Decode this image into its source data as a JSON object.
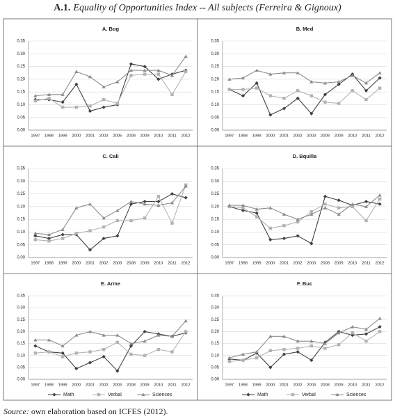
{
  "title_label": "A.1.",
  "title": "Equality of Opportunities Index -- All subjects (Ferreira & Gignoux)",
  "source_label": "Source:",
  "source": "own elaboration based on ICFES (2012).",
  "chart_data": [
    {
      "type": "line",
      "title": "A. Bog",
      "categories": [
        "1997",
        "1998",
        "1999",
        "2000",
        "2001",
        "2003",
        "2005",
        "2008",
        "2009",
        "2010",
        "2011",
        "2012"
      ],
      "ylim": [
        0,
        0.35
      ],
      "yticks": [
        {
          "value": 0,
          "label": "0.00"
        },
        {
          "value": 0.05,
          "label": "0.05"
        },
        {
          "value": 0.1,
          "label": "0.10"
        },
        {
          "value": 0.15,
          "label": "0.15"
        },
        {
          "value": 0.2,
          "label": "0.20"
        },
        {
          "value": 0.25,
          "label": "0.25"
        },
        {
          "value": 0.3,
          "label": "0.30"
        },
        {
          "value": 0.35,
          "label": "0.35"
        }
      ],
      "grid": true,
      "legend": false,
      "series": [
        {
          "name": "Math",
          "color": "#404040",
          "marker": "diamond",
          "values": [
            0.12,
            0.12,
            0.11,
            0.18,
            0.075,
            0.09,
            0.1,
            0.26,
            0.25,
            0.2,
            0.22,
            0.235
          ]
        },
        {
          "name": "Verbal",
          "color": "#b3b3b3",
          "marker": "square",
          "values": [
            0.115,
            0.125,
            0.09,
            0.09,
            0.095,
            0.12,
            0.105,
            0.215,
            0.22,
            0.22,
            0.14,
            0.23
          ]
        },
        {
          "name": "Sciences",
          "color": "#8c8c8c",
          "marker": "triangle",
          "values": [
            0.135,
            0.14,
            0.14,
            0.23,
            0.21,
            0.17,
            0.19,
            0.235,
            0.235,
            0.235,
            0.215,
            0.29
          ]
        }
      ]
    },
    {
      "type": "line",
      "title": "B. Med",
      "categories": [
        "1997",
        "1998",
        "1999",
        "2000",
        "2001",
        "2002",
        "2003",
        "2008",
        "2009",
        "2010",
        "2011",
        "2012"
      ],
      "ylim": [
        0,
        0.35
      ],
      "yticks": [
        {
          "value": 0,
          "label": "0.00"
        },
        {
          "value": 0.05,
          "label": "0.05"
        },
        {
          "value": 0.1,
          "label": "0.10"
        },
        {
          "value": 0.15,
          "label": "0.15"
        },
        {
          "value": 0.2,
          "label": "0.20"
        },
        {
          "value": 0.25,
          "label": "0.25"
        },
        {
          "value": 0.3,
          "label": "0.30"
        },
        {
          "value": 0.35,
          "label": "0.35"
        }
      ],
      "grid": true,
      "legend": false,
      "series": [
        {
          "name": "Math",
          "color": "#404040",
          "marker": "diamond",
          "values": [
            0.16,
            0.135,
            0.185,
            0.06,
            0.085,
            0.125,
            0.065,
            0.14,
            0.18,
            0.22,
            0.155,
            0.205
          ]
        },
        {
          "name": "Verbal",
          "color": "#b3b3b3",
          "marker": "square",
          "values": [
            0.16,
            0.16,
            0.165,
            0.135,
            0.125,
            0.155,
            0.135,
            0.11,
            0.105,
            0.155,
            0.12,
            0.165
          ]
        },
        {
          "name": "Sciences",
          "color": "#8c8c8c",
          "marker": "triangle",
          "values": [
            0.2,
            0.205,
            0.235,
            0.22,
            0.225,
            0.225,
            0.19,
            0.185,
            0.19,
            0.215,
            0.185,
            0.225
          ]
        }
      ]
    },
    {
      "type": "line",
      "title": "C. Cali",
      "categories": [
        "1997",
        "1998",
        "1999",
        "2000",
        "2001",
        "2002",
        "2003",
        "2008",
        "2009",
        "2010",
        "2011",
        "2012"
      ],
      "ylim": [
        0,
        0.35
      ],
      "yticks": [
        {
          "value": 0,
          "label": "0.00"
        },
        {
          "value": 0.05,
          "label": "0.05"
        },
        {
          "value": 0.1,
          "label": "0.10"
        },
        {
          "value": 0.15,
          "label": "0.15"
        },
        {
          "value": 0.2,
          "label": "0.20"
        },
        {
          "value": 0.25,
          "label": "0.25"
        },
        {
          "value": 0.3,
          "label": "0.30"
        },
        {
          "value": 0.35,
          "label": "0.35"
        }
      ],
      "grid": true,
      "legend": false,
      "series": [
        {
          "name": "Math",
          "color": "#404040",
          "marker": "diamond",
          "values": [
            0.085,
            0.075,
            0.09,
            0.09,
            0.03,
            0.075,
            0.085,
            0.21,
            0.22,
            0.22,
            0.25,
            0.235
          ]
        },
        {
          "name": "Verbal",
          "color": "#b3b3b3",
          "marker": "square",
          "values": [
            0.07,
            0.065,
            0.075,
            0.095,
            0.105,
            0.12,
            0.145,
            0.145,
            0.155,
            0.24,
            0.135,
            0.285
          ]
        },
        {
          "name": "Sciences",
          "color": "#8c8c8c",
          "marker": "triangle",
          "values": [
            0.095,
            0.09,
            0.11,
            0.195,
            0.21,
            0.155,
            0.185,
            0.22,
            0.21,
            0.205,
            0.215,
            0.28
          ]
        }
      ]
    },
    {
      "type": "line",
      "title": "D. Bquilla",
      "categories": [
        "1997",
        "1998",
        "1999",
        "2000",
        "2001",
        "2002",
        "2003",
        "2008",
        "2009",
        "2010",
        "2011",
        "2012"
      ],
      "ylim": [
        0,
        0.35
      ],
      "yticks": [
        {
          "value": 0,
          "label": "0.00"
        },
        {
          "value": 0.05,
          "label": "0.05"
        },
        {
          "value": 0.1,
          "label": "0.10"
        },
        {
          "value": 0.15,
          "label": "0.15"
        },
        {
          "value": 0.2,
          "label": "0.20"
        },
        {
          "value": 0.25,
          "label": "0.25"
        },
        {
          "value": 0.3,
          "label": "0.30"
        },
        {
          "value": 0.35,
          "label": "0.35"
        }
      ],
      "grid": true,
      "legend": false,
      "series": [
        {
          "name": "Math",
          "color": "#404040",
          "marker": "diamond",
          "values": [
            0.2,
            0.185,
            0.175,
            0.07,
            0.075,
            0.085,
            0.055,
            0.24,
            0.225,
            0.205,
            0.22,
            0.21
          ]
        },
        {
          "name": "Verbal",
          "color": "#b3b3b3",
          "marker": "square",
          "values": [
            0.2,
            0.195,
            0.16,
            0.115,
            0.125,
            0.14,
            0.18,
            0.21,
            0.195,
            0.2,
            0.145,
            0.23
          ]
        },
        {
          "name": "Sciences",
          "color": "#8c8c8c",
          "marker": "triangle",
          "values": [
            0.205,
            0.205,
            0.19,
            0.195,
            0.17,
            0.15,
            0.17,
            0.195,
            0.17,
            0.21,
            0.2,
            0.245
          ]
        }
      ]
    },
    {
      "type": "line",
      "title": "E. Arme",
      "categories": [
        "1997",
        "1998",
        "1999",
        "2000",
        "2001",
        "2002",
        "2003",
        "2008",
        "2009",
        "2010",
        "2011",
        "2012"
      ],
      "ylim": [
        0,
        0.35
      ],
      "yticks": [
        {
          "value": 0,
          "label": "0.00"
        },
        {
          "value": 0.05,
          "label": "0.05"
        },
        {
          "value": 0.1,
          "label": "0.10"
        },
        {
          "value": 0.15,
          "label": "0.15"
        },
        {
          "value": 0.2,
          "label": "0.20"
        },
        {
          "value": 0.25,
          "label": "0.25"
        },
        {
          "value": 0.3,
          "label": "0.30"
        },
        {
          "value": 0.35,
          "label": "0.35"
        }
      ],
      "grid": true,
      "legend": true,
      "series": [
        {
          "name": "Math",
          "color": "#404040",
          "marker": "diamond",
          "values": [
            0.14,
            0.115,
            0.11,
            0.045,
            0.07,
            0.095,
            0.035,
            0.14,
            0.2,
            0.19,
            0.18,
            0.195
          ]
        },
        {
          "name": "Verbal",
          "color": "#b3b3b3",
          "marker": "square",
          "values": [
            0.11,
            0.115,
            0.095,
            0.11,
            0.115,
            0.125,
            0.155,
            0.105,
            0.1,
            0.125,
            0.115,
            0.2
          ]
        },
        {
          "name": "Sciences",
          "color": "#8c8c8c",
          "marker": "triangle",
          "values": [
            0.165,
            0.165,
            0.14,
            0.185,
            0.2,
            0.185,
            0.185,
            0.15,
            0.16,
            0.185,
            0.18,
            0.245
          ]
        }
      ]
    },
    {
      "type": "line",
      "title": "F. Buc",
      "categories": [
        "1997",
        "1998",
        "1999",
        "2000",
        "2001",
        "2002",
        "2003",
        "2008",
        "2009",
        "2010",
        "2011",
        "2012"
      ],
      "ylim": [
        0,
        0.35
      ],
      "yticks": [
        {
          "value": 0,
          "label": "0.00"
        },
        {
          "value": 0.05,
          "label": "0.05"
        },
        {
          "value": 0.1,
          "label": "0.10"
        },
        {
          "value": 0.15,
          "label": "0.15"
        },
        {
          "value": 0.2,
          "label": "0.20"
        },
        {
          "value": 0.25,
          "label": "0.25"
        },
        {
          "value": 0.3,
          "label": "0.30"
        },
        {
          "value": 0.35,
          "label": "0.35"
        }
      ],
      "grid": true,
      "legend": true,
      "series": [
        {
          "name": "Math",
          "color": "#404040",
          "marker": "diamond",
          "values": [
            0.085,
            0.08,
            0.11,
            0.05,
            0.105,
            0.115,
            0.08,
            0.155,
            0.2,
            0.185,
            0.19,
            0.22
          ]
        },
        {
          "name": "Verbal",
          "color": "#b3b3b3",
          "marker": "square",
          "values": [
            0.075,
            0.08,
            0.09,
            0.12,
            0.125,
            0.13,
            0.14,
            0.13,
            0.145,
            0.195,
            0.16,
            0.2
          ]
        },
        {
          "name": "Sciences",
          "color": "#8c8c8c",
          "marker": "triangle",
          "values": [
            0.09,
            0.105,
            0.115,
            0.18,
            0.18,
            0.16,
            0.16,
            0.15,
            0.195,
            0.22,
            0.21,
            0.255
          ]
        }
      ]
    }
  ]
}
